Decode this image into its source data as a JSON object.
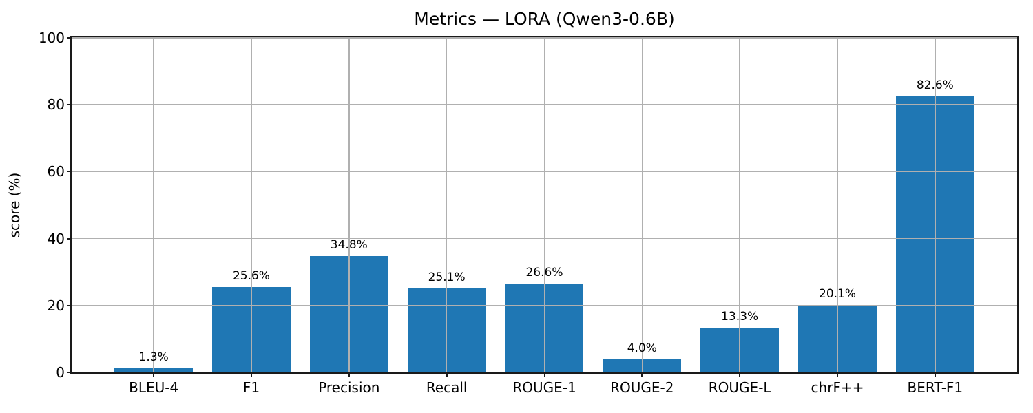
{
  "chart_data": {
    "type": "bar",
    "title": "Metrics — LORA (Qwen3-0.6B)",
    "xlabel": "",
    "ylabel": "score (%)",
    "categories": [
      "BLEU-4",
      "F1",
      "Precision",
      "Recall",
      "ROUGE-1",
      "ROUGE-2",
      "ROUGE-L",
      "chrF++",
      "BERT-F1"
    ],
    "values": [
      1.3,
      25.6,
      34.8,
      25.1,
      26.6,
      4.0,
      13.3,
      20.1,
      82.6
    ],
    "value_labels": [
      "1.3%",
      "25.6%",
      "34.8%",
      "25.1%",
      "26.6%",
      "4.0%",
      "13.3%",
      "20.1%",
      "82.6%"
    ],
    "ylim": [
      0,
      100
    ],
    "yticks": [
      0,
      20,
      40,
      60,
      80,
      100
    ],
    "ytick_labels": [
      "0",
      "20",
      "40",
      "60",
      "80",
      "100"
    ],
    "grid": true,
    "grid_over_bars": true,
    "legend": false,
    "bar_color": "#1f77b4",
    "grid_color": "#b0b0b0",
    "spine_color": "#1a1a1a"
  }
}
